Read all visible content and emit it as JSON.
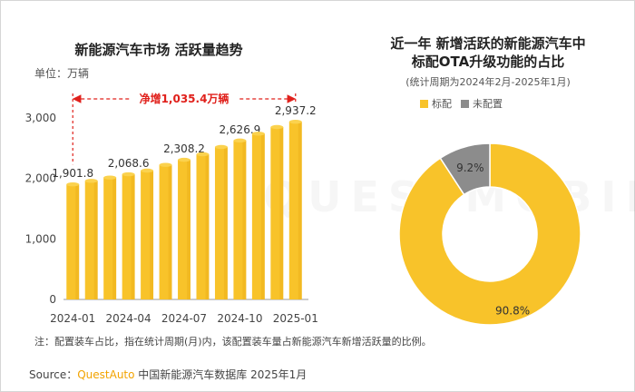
{
  "colors": {
    "bar": "#f8c32a",
    "bar_top": "#fbd24e",
    "bar_shade": "#e8a512",
    "accent_red": "#e0201b",
    "grey": "#8c8c8c",
    "axis": "#999999"
  },
  "watermark": "QUESTMOBILE",
  "charts": {
    "left": {
      "title": "新能源汽车市场 活跃量趋势",
      "unit_label": "单位：万辆",
      "annotation": "净增1,035.4万辆"
    },
    "right": {
      "title_line1": "近一年 新增活跃的新能源汽车中",
      "title_line2": "标配OTA升级功能的占比",
      "subtitle": "(统计周期为2024年2月-2025年1月)"
    }
  },
  "chart_data": [
    {
      "type": "bar",
      "title": "新能源汽车市场 活跃量趋势",
      "ylabel": "单位：万辆",
      "ylim": [
        0,
        3000
      ],
      "yticks": [
        0,
        1000,
        2000,
        3000
      ],
      "ytick_labels": [
        "0",
        "1,000",
        "2,000",
        "3,000"
      ],
      "categories": [
        "2024-01",
        "2024-02",
        "2024-03",
        "2024-04",
        "2024-05",
        "2024-06",
        "2024-07",
        "2024-08",
        "2024-09",
        "2024-10",
        "2024-11",
        "2024-12",
        "2025-01"
      ],
      "xtick_labels_shown": [
        "2024-01",
        "2024-04",
        "2024-07",
        "2024-10",
        "2025-01"
      ],
      "values": [
        1901.8,
        1960,
        2015,
        2068.6,
        2130,
        2225,
        2308.2,
        2400,
        2520,
        2626.9,
        2740,
        2850,
        2937.2
      ],
      "data_labels": [
        "1,901.8",
        "",
        "",
        "2,068.6",
        "",
        "",
        "2,308.2",
        "",
        "",
        "2,626.9",
        "",
        "",
        "2,937.2"
      ],
      "annotation": "净增1,035.4万辆"
    },
    {
      "type": "pie",
      "title": "近一年 新增活跃的新能源汽车中标配OTA升级功能的占比",
      "subtitle": "(统计周期为2024年2月-2025年1月)",
      "labels": [
        "标配",
        "未配置"
      ],
      "values": [
        90.8,
        9.2
      ],
      "value_labels": [
        "90.8%",
        "9.2%"
      ],
      "colors": [
        "#f8c32a",
        "#8c8c8c"
      ],
      "legend": "top"
    }
  ],
  "footer": {
    "note": "注：配置装车占比，指在统计周期(月)内，该配置装车量占新能源汽车新增活跃量的比例。",
    "source_prefix": "Source：",
    "source_brand": "QuestAuto",
    "source_text": " 中国新能源汽车数据库 2025年1月"
  }
}
